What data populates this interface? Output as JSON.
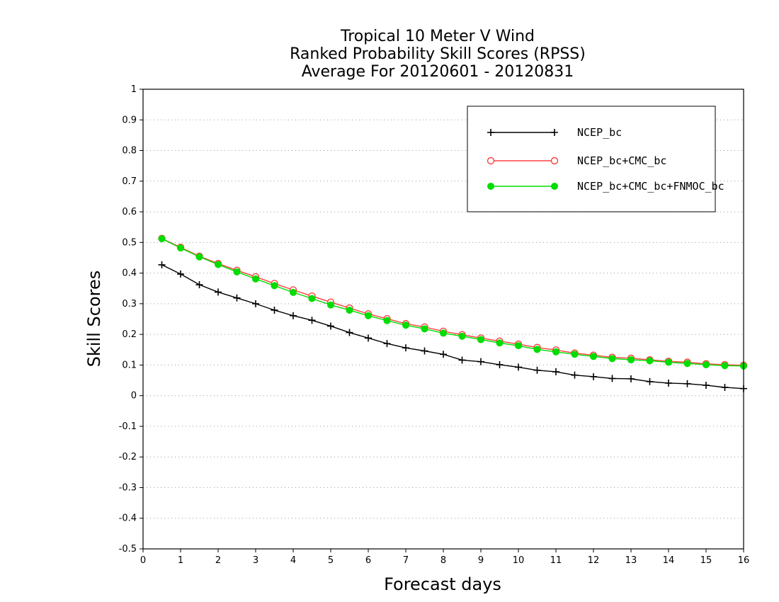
{
  "chart_data": {
    "type": "line",
    "title_lines": [
      "Tropical 10 Meter V Wind",
      "Ranked Probability Skill Scores (RPSS)",
      "Average For 20120601 - 20120831"
    ],
    "xlabel": "Forecast days",
    "ylabel": "Skill Scores",
    "xlim": [
      0,
      16
    ],
    "ylim": [
      -0.5,
      1
    ],
    "x_ticks": [
      "0",
      "1",
      "2",
      "3",
      "4",
      "5",
      "6",
      "7",
      "8",
      "9",
      "10",
      "11",
      "12",
      "13",
      "14",
      "15",
      "16"
    ],
    "y_ticks": [
      "-0.5",
      "-0.4",
      "-0.3",
      "-0.2",
      "-0.1",
      "0",
      "0.1",
      "0.2",
      "0.3",
      "0.4",
      "0.5",
      "0.6",
      "0.7",
      "0.8",
      "0.9",
      "1"
    ],
    "grid": "horizontal dotted",
    "legend_position": "top-right",
    "x": [
      0.5,
      1,
      1.5,
      2,
      2.5,
      3,
      3.5,
      4,
      4.5,
      5,
      5.5,
      6,
      6.5,
      7,
      7.5,
      8,
      8.5,
      9,
      9.5,
      10,
      10.5,
      11,
      11.5,
      12,
      12.5,
      13,
      13.5,
      14,
      14.5,
      15,
      15.5,
      16
    ],
    "series": [
      {
        "name": "NCEP_bc",
        "color": "#000000",
        "marker": "plus",
        "values": [
          0.427,
          0.397,
          0.362,
          0.338,
          0.319,
          0.3,
          0.279,
          0.261,
          0.246,
          0.227,
          0.206,
          0.188,
          0.17,
          0.156,
          0.146,
          0.135,
          0.116,
          0.111,
          0.101,
          0.093,
          0.083,
          0.078,
          0.067,
          0.062,
          0.056,
          0.055,
          0.046,
          0.041,
          0.039,
          0.034,
          0.027,
          0.023
        ]
      },
      {
        "name": "NCEP_bc+CMC_bc",
        "color": "#ff4040",
        "marker": "open-circle",
        "values": [
          0.513,
          0.484,
          0.455,
          0.431,
          0.409,
          0.388,
          0.366,
          0.345,
          0.325,
          0.305,
          0.286,
          0.267,
          0.251,
          0.235,
          0.224,
          0.21,
          0.199,
          0.188,
          0.178,
          0.168,
          0.157,
          0.149,
          0.139,
          0.132,
          0.125,
          0.122,
          0.117,
          0.112,
          0.109,
          0.104,
          0.101,
          0.099
        ]
      },
      {
        "name": "NCEP_bc+CMC_bc+FNMOC_bc",
        "color": "#00dd00",
        "marker": "filled-circle",
        "values": [
          0.512,
          0.482,
          0.453,
          0.428,
          0.404,
          0.381,
          0.359,
          0.337,
          0.317,
          0.296,
          0.279,
          0.261,
          0.245,
          0.23,
          0.218,
          0.204,
          0.194,
          0.183,
          0.172,
          0.163,
          0.151,
          0.143,
          0.135,
          0.128,
          0.121,
          0.117,
          0.114,
          0.109,
          0.105,
          0.101,
          0.098,
          0.097
        ]
      }
    ]
  }
}
